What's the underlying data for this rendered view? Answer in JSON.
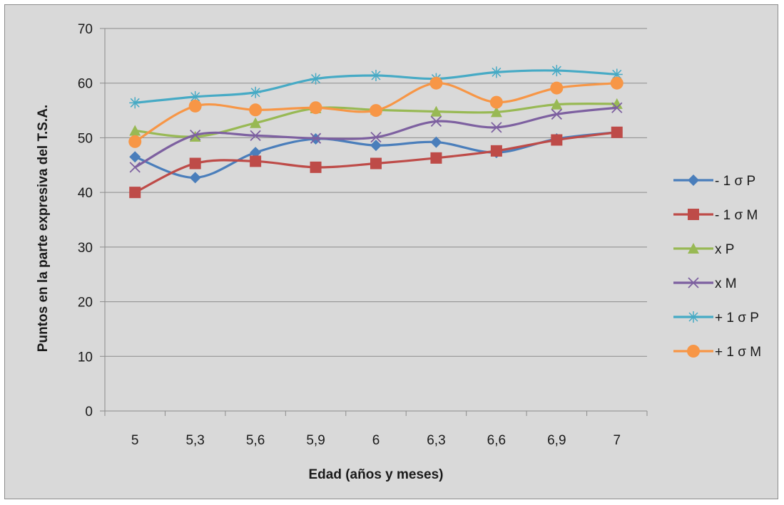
{
  "chart_data": {
    "type": "line",
    "title": "",
    "xlabel": "Edad (años y meses)",
    "ylabel": "Puntos en la parte expresiva del T.S.A.",
    "ylim": [
      0,
      70
    ],
    "yticks": [
      "0",
      "10",
      "20",
      "30",
      "40",
      "50",
      "60",
      "70"
    ],
    "categories": [
      "5",
      "5,3",
      "5,6",
      "5,9",
      "6",
      "6,3",
      "6,6",
      "6,9",
      "7"
    ],
    "grid": "horizontal",
    "legend_position": "right",
    "series": [
      {
        "name": "- 1 σ P",
        "color": "#4a7ebb",
        "marker": "diamond",
        "values": [
          46.5,
          42.7,
          47.3,
          49.8,
          48.6,
          49.2,
          47.3,
          49.8,
          51.0
        ]
      },
      {
        "name": "- 1 σ M",
        "color": "#be4b48",
        "marker": "square",
        "values": [
          40.0,
          45.3,
          45.7,
          44.6,
          45.3,
          46.3,
          47.6,
          49.6,
          51.0
        ]
      },
      {
        "name": "x P",
        "color": "#98b954",
        "marker": "triangle",
        "values": [
          51.3,
          50.2,
          52.7,
          55.4,
          55.1,
          54.8,
          54.7,
          56.1,
          56.2
        ]
      },
      {
        "name": "x M",
        "color": "#7d60a0",
        "marker": "x",
        "values": [
          44.6,
          50.5,
          50.4,
          49.9,
          50.1,
          53.0,
          51.9,
          54.3,
          55.5
        ]
      },
      {
        "name": "+ 1 σ P",
        "color": "#46aac5",
        "marker": "star",
        "values": [
          56.4,
          57.5,
          58.3,
          60.8,
          61.4,
          60.8,
          62.0,
          62.3,
          61.6
        ]
      },
      {
        "name": "+ 1 σ M",
        "color": "#f79646",
        "marker": "circle",
        "values": [
          49.3,
          55.8,
          55.1,
          55.5,
          55.0,
          60.0,
          56.5,
          59.1,
          60.0
        ]
      }
    ]
  }
}
